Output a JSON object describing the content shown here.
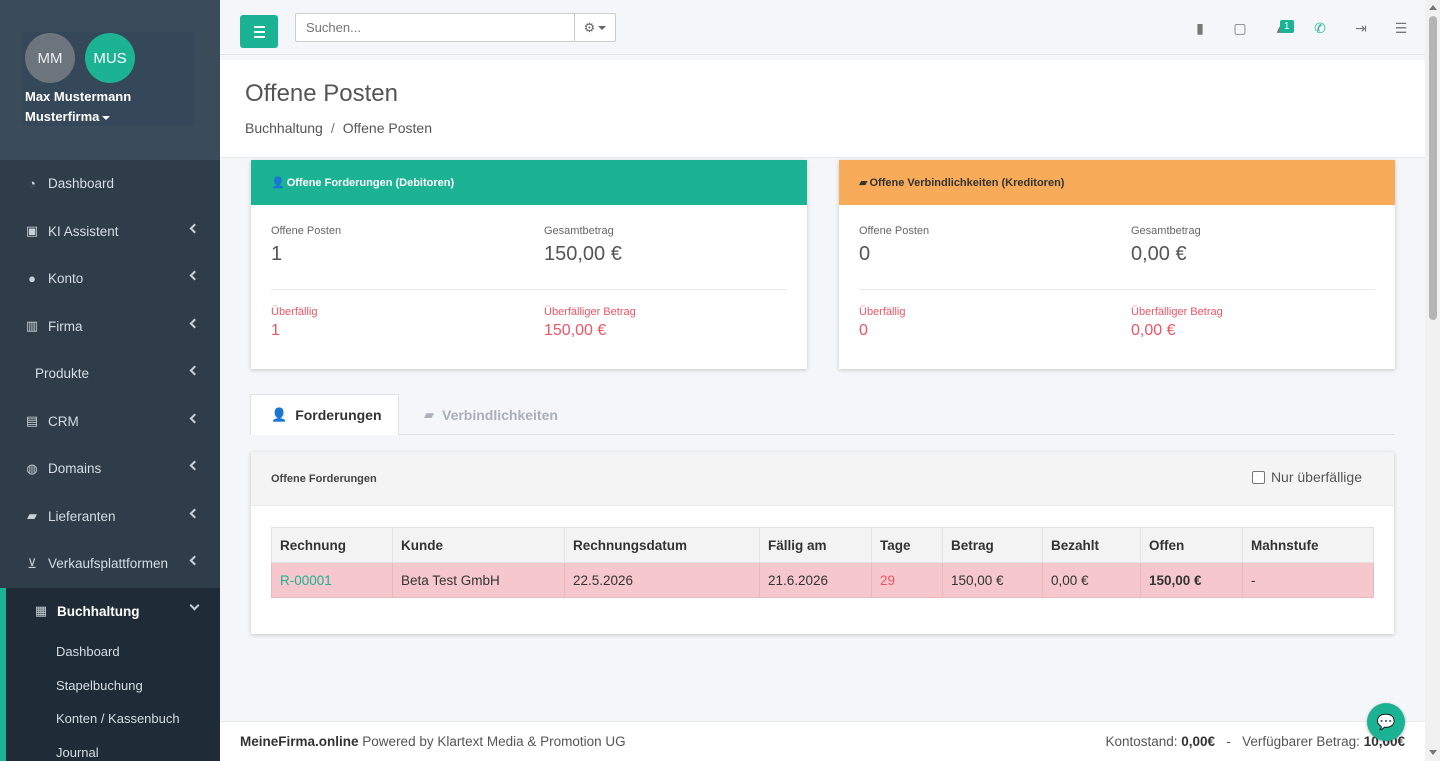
{
  "user": {
    "initials_primary": "MM",
    "initials_secondary": "MUS",
    "name": "Max Mustermann",
    "company": "Musterfirma"
  },
  "sidebar": {
    "items": [
      {
        "label": "Dashboard",
        "icon": "tachometer-icon"
      },
      {
        "label": "KI Assistent",
        "icon": "robot-icon"
      },
      {
        "label": "Konto",
        "icon": "user-icon"
      },
      {
        "label": "Firma",
        "icon": "building-icon"
      },
      {
        "label": "Produkte",
        "icon": ""
      },
      {
        "label": "CRM",
        "icon": "address-card-icon"
      },
      {
        "label": "Domains",
        "icon": "globe-icon"
      },
      {
        "label": "Lieferanten",
        "icon": "truck-icon"
      },
      {
        "label": "Verkaufsplattformen",
        "icon": "cart-icon"
      },
      {
        "label": "Buchhaltung",
        "icon": "calculator-icon"
      }
    ],
    "subitems": [
      "Dashboard",
      "Stapelbuchung",
      "Konten / Kassenbuch",
      "Journal"
    ]
  },
  "topbar": {
    "search_placeholder": "Suchen...",
    "notification_count": "1"
  },
  "page": {
    "title": "Offene Posten",
    "breadcrumb": [
      "Buchhaltung",
      "Offene Posten"
    ]
  },
  "debitoren": {
    "title": "Offene Forderungen (Debitoren)",
    "offene_posten_label": "Offene Posten",
    "offene_posten": "1",
    "gesamtbetrag_label": "Gesamtbetrag",
    "gesamtbetrag": "150,00 €",
    "ueberfaellig_label": "Überfällig",
    "ueberfaellig": "1",
    "ueberfaelliger_betrag_label": "Überfälliger Betrag",
    "ueberfaelliger_betrag": "150,00 €",
    "color": "#1bb394"
  },
  "kreditoren": {
    "title": "Offene Verbindlichkeiten (Kreditoren)",
    "offene_posten_label": "Offene Posten",
    "offene_posten": "0",
    "gesamtbetrag_label": "Gesamtbetrag",
    "gesamtbetrag": "0,00 €",
    "ueberfaellig_label": "Überfällig",
    "ueberfaellig": "0",
    "ueberfaelliger_betrag_label": "Überfälliger Betrag",
    "ueberfaelliger_betrag": "0,00 €",
    "color": "#f8ac59"
  },
  "tabs": {
    "forderungen": "Forderungen",
    "verbindlichkeiten": "Verbindlichkeiten"
  },
  "table": {
    "title": "Offene Forderungen",
    "filter_label": "Nur überfällige",
    "columns": [
      "Rechnung",
      "Kunde",
      "Rechnungsdatum",
      "Fällig am",
      "Tage",
      "Betrag",
      "Bezahlt",
      "Offen",
      "Mahnstufe"
    ],
    "rows": [
      [
        "R-00001",
        "Beta Test GmbH",
        "22.5.2026",
        "21.6.2026",
        "29",
        "150,00 €",
        "0,00 €",
        "150,00 €",
        "-"
      ]
    ]
  },
  "footer": {
    "brand": "MeineFirma.online",
    "powered": "Powered by Klartext Media & Promotion UG",
    "kontostand_label": "Kontostand:",
    "kontostand": "0,00€",
    "separator": "-",
    "verfuegbar_label": "Verfügbarer Betrag:",
    "verfuegbar": "10,00€"
  }
}
